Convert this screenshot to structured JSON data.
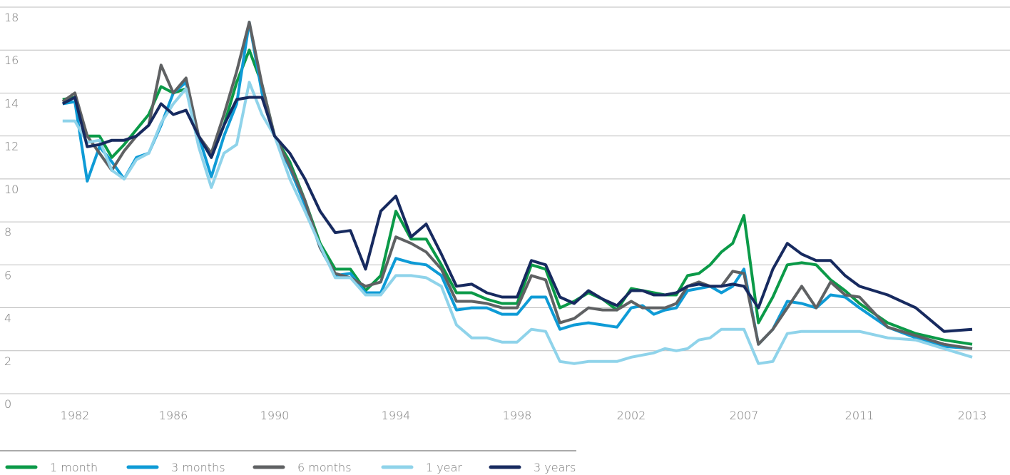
{
  "chart_data": {
    "type": "line",
    "x": [
      1981.5,
      1982,
      1982.5,
      1983,
      1983.5,
      1984,
      1984.5,
      1985,
      1985.5,
      1986,
      1986.5,
      1987,
      1987.5,
      1988,
      1988.5,
      1989,
      1989.5,
      1990,
      1990.5,
      1991,
      1991.5,
      1992,
      1992.5,
      1993,
      1993.5,
      1994,
      1994.5,
      1995,
      1995.5,
      1996,
      1996.5,
      1997,
      1997.5,
      1998,
      1998.5,
      1999,
      1999.5,
      2000,
      2000.5,
      2001,
      2001.5,
      2002,
      2002.5,
      2003,
      2003.5,
      2004,
      2004.5,
      2005,
      2005.5,
      2006,
      2006.5,
      2007,
      2007.5,
      2008,
      2008.5,
      2009,
      2009.5,
      2010,
      2010.5,
      2011,
      2011.5,
      2012,
      2012.5,
      2013
    ],
    "series": [
      {
        "name": "1 month",
        "color": "#0b9a48",
        "values": [
          13.7,
          13.8,
          12.0,
          12.0,
          11.0,
          11.6,
          12.3,
          13.0,
          14.3,
          14.0,
          14.2,
          12.0,
          11.0,
          12.5,
          14.5,
          16.0,
          14.4,
          12.0,
          10.8,
          9.0,
          7.0,
          5.8,
          5.8,
          4.8,
          5.5,
          8.5,
          7.2,
          7.2,
          6.0,
          4.7,
          4.7,
          4.4,
          4.2,
          4.2,
          6.0,
          5.8,
          4.0,
          4.3,
          4.7,
          4.4,
          3.9,
          4.9,
          4.8,
          4.7,
          4.6,
          4.6,
          5.5,
          5.6,
          6.0,
          6.6,
          7.0,
          8.3,
          3.3,
          4.5,
          6.0,
          6.1,
          6.0,
          5.3,
          4.8,
          4.2,
          3.3,
          2.8,
          2.5,
          2.3
        ]
      },
      {
        "name": "3 months",
        "color": "#0e9bd6",
        "values": [
          13.5,
          13.6,
          9.9,
          11.5,
          10.8,
          10.0,
          11.0,
          11.2,
          12.5,
          14.0,
          14.5,
          12.0,
          10.1,
          12.0,
          13.5,
          17.3,
          14.0,
          12.0,
          10.5,
          8.8,
          6.8,
          5.5,
          5.6,
          4.7,
          4.7,
          6.3,
          6.1,
          6.0,
          5.5,
          3.9,
          4.0,
          4.0,
          3.7,
          3.7,
          4.5,
          4.5,
          3.0,
          3.2,
          3.3,
          3.2,
          3.1,
          4.0,
          4.1,
          3.7,
          3.9,
          4.0,
          4.8,
          4.9,
          5.0,
          4.7,
          5.0,
          5.8,
          2.3,
          3.0,
          4.3,
          4.2,
          4.0,
          4.6,
          4.5,
          4.0,
          3.1,
          2.6,
          2.2,
          2.1
        ]
      },
      {
        "name": "6 months",
        "color": "#5f6163",
        "values": [
          13.6,
          14.0,
          12.0,
          11.2,
          10.4,
          11.3,
          12.0,
          12.5,
          15.3,
          14.0,
          14.7,
          12.0,
          11.2,
          13.0,
          15.0,
          17.3,
          14.4,
          12.0,
          10.6,
          9.0,
          6.8,
          5.6,
          5.4,
          5.0,
          5.2,
          7.3,
          7.0,
          6.6,
          5.8,
          4.3,
          4.3,
          4.2,
          4.0,
          4.0,
          5.5,
          5.3,
          3.3,
          3.5,
          4.0,
          3.9,
          3.9,
          4.3,
          4.0,
          4.0,
          4.0,
          4.2,
          5.0,
          5.2,
          5.0,
          5.0,
          5.7,
          5.6,
          2.3,
          3.0,
          4.0,
          5.0,
          4.0,
          5.2,
          4.6,
          4.5,
          3.1,
          2.7,
          2.3,
          2.1
        ]
      },
      {
        "name": "1 year",
        "color": "#8fd3ea",
        "values": [
          12.7,
          12.7,
          11.7,
          11.8,
          10.4,
          10.0,
          10.9,
          11.2,
          12.6,
          13.5,
          14.2,
          11.5,
          9.6,
          11.2,
          11.6,
          14.5,
          13.0,
          12.0,
          10.0,
          8.5,
          6.9,
          5.4,
          5.4,
          4.6,
          4.6,
          5.5,
          5.5,
          5.4,
          5.0,
          3.2,
          2.6,
          2.6,
          2.4,
          2.4,
          3.0,
          2.9,
          1.5,
          1.4,
          1.5,
          1.5,
          1.5,
          1.7,
          1.8,
          1.9,
          2.1,
          2.0,
          2.1,
          2.5,
          2.6,
          3.0,
          3.0,
          3.0,
          1.4,
          1.5,
          2.8,
          2.9,
          2.9,
          2.9,
          2.9,
          2.9,
          2.6,
          2.5,
          2.1,
          1.7
        ]
      },
      {
        "name": "3 years",
        "color": "#172a5f",
        "values": [
          13.5,
          13.8,
          11.5,
          11.6,
          11.8,
          11.8,
          12.0,
          12.5,
          13.5,
          13.0,
          13.2,
          12.0,
          11.0,
          12.5,
          13.7,
          13.8,
          13.8,
          12.0,
          11.2,
          10.0,
          8.5,
          7.5,
          7.6,
          5.8,
          8.5,
          9.2,
          7.3,
          7.9,
          6.5,
          5.0,
          5.1,
          4.7,
          4.5,
          4.5,
          6.2,
          6.0,
          4.5,
          4.2,
          4.8,
          4.4,
          4.1,
          4.8,
          4.8,
          4.6,
          4.6,
          4.7,
          5.0,
          5.1,
          5.0,
          5.0,
          5.1,
          5.0,
          4.0,
          5.8,
          7.0,
          6.5,
          6.2,
          6.2,
          5.5,
          5.0,
          4.6,
          4.0,
          2.9,
          3.0
        ]
      }
    ],
    "xlim": [
      1981.5,
      2013
    ],
    "xticks": [
      1982,
      1986,
      1990,
      1994,
      1998,
      2002,
      2007,
      2011,
      2013
    ],
    "ylim": [
      0,
      18
    ],
    "yticks": [
      0,
      2,
      4,
      6,
      8,
      10,
      12,
      14,
      16,
      18
    ],
    "grid": true,
    "legend": "bottom"
  }
}
